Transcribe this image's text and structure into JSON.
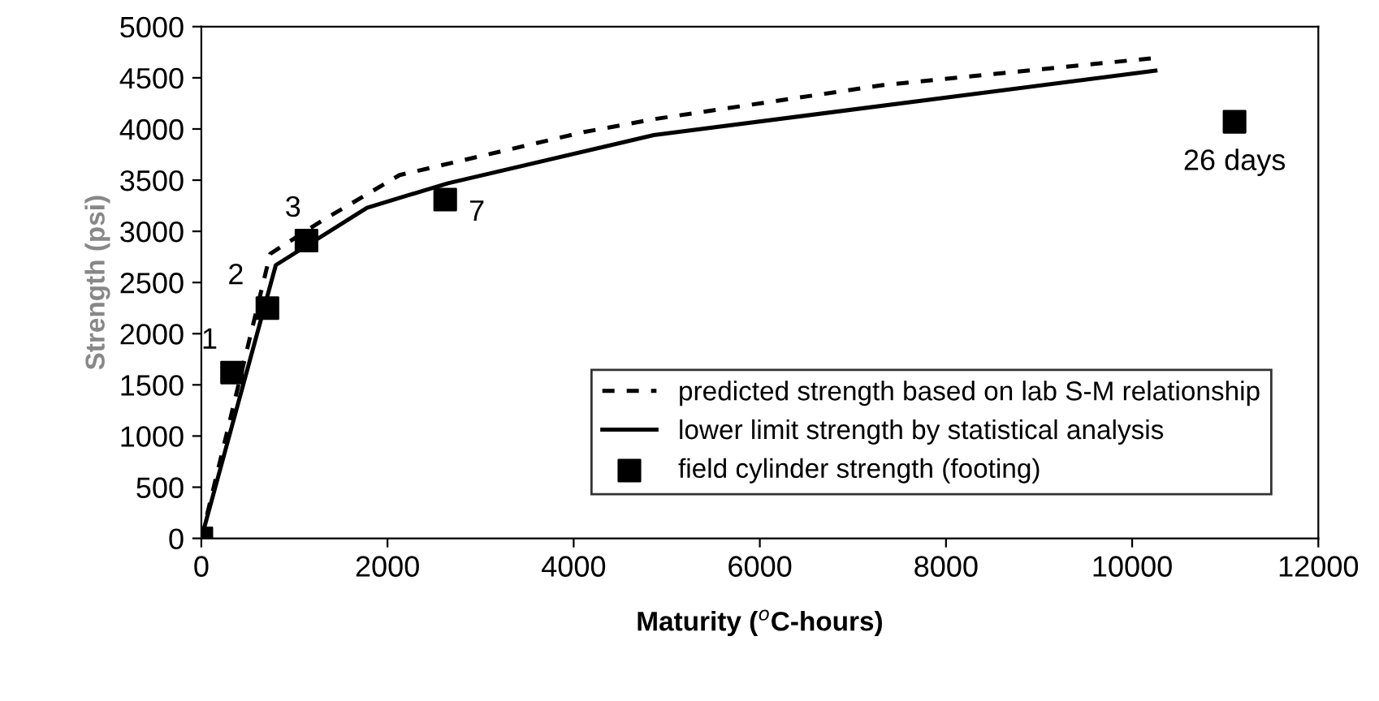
{
  "chart_data": {
    "type": "line",
    "xlabel": "Maturity ($^{o}$C-hours)",
    "ylabel": "Strength (psi)",
    "xlim": [
      0,
      12000
    ],
    "xticks": [
      0,
      2000,
      4000,
      6000,
      8000,
      10000,
      12000
    ],
    "ylim": [
      0,
      5000
    ],
    "yticks": [
      0,
      500,
      1000,
      1500,
      2000,
      2500,
      3000,
      3500,
      4000,
      4500,
      5000
    ],
    "grid": false,
    "legend": "bottom right",
    "series": [
      {
        "name": "predicted strength based on lab S-M relationship",
        "line_style": "dashed",
        "color": "#000000",
        "x": [
          0,
          740,
          1290,
          2130,
          4110,
          4890,
          7330,
          10200
        ],
        "values": [
          0,
          2780,
          3100,
          3550,
          3970,
          4100,
          4430,
          4690
        ]
      },
      {
        "name": "lower limit strength by statistical analysis",
        "line_style": "solid",
        "color": "#000000",
        "x": [
          0,
          800,
          1780,
          2650,
          4860,
          10250
        ],
        "values": [
          0,
          2670,
          3230,
          3470,
          3940,
          4570
        ]
      },
      {
        "name": "field cylinder strength (footing)",
        "type": "scatter",
        "marker": "square",
        "color": "#000000",
        "x": [
          0,
          330,
          710,
          1130,
          2620,
          11100
        ],
        "values": [
          0,
          1620,
          2250,
          2910,
          3310,
          4070
        ]
      }
    ],
    "annotations": [
      {
        "text": "1",
        "x": 330,
        "y": 1620
      },
      {
        "text": "2",
        "x": 710,
        "y": 2250
      },
      {
        "text": "3",
        "x": 1130,
        "y": 2910
      },
      {
        "text": "7",
        "x": 2620,
        "y": 3310
      },
      {
        "text": "26 days",
        "x": 11100,
        "y": 4070
      }
    ]
  }
}
